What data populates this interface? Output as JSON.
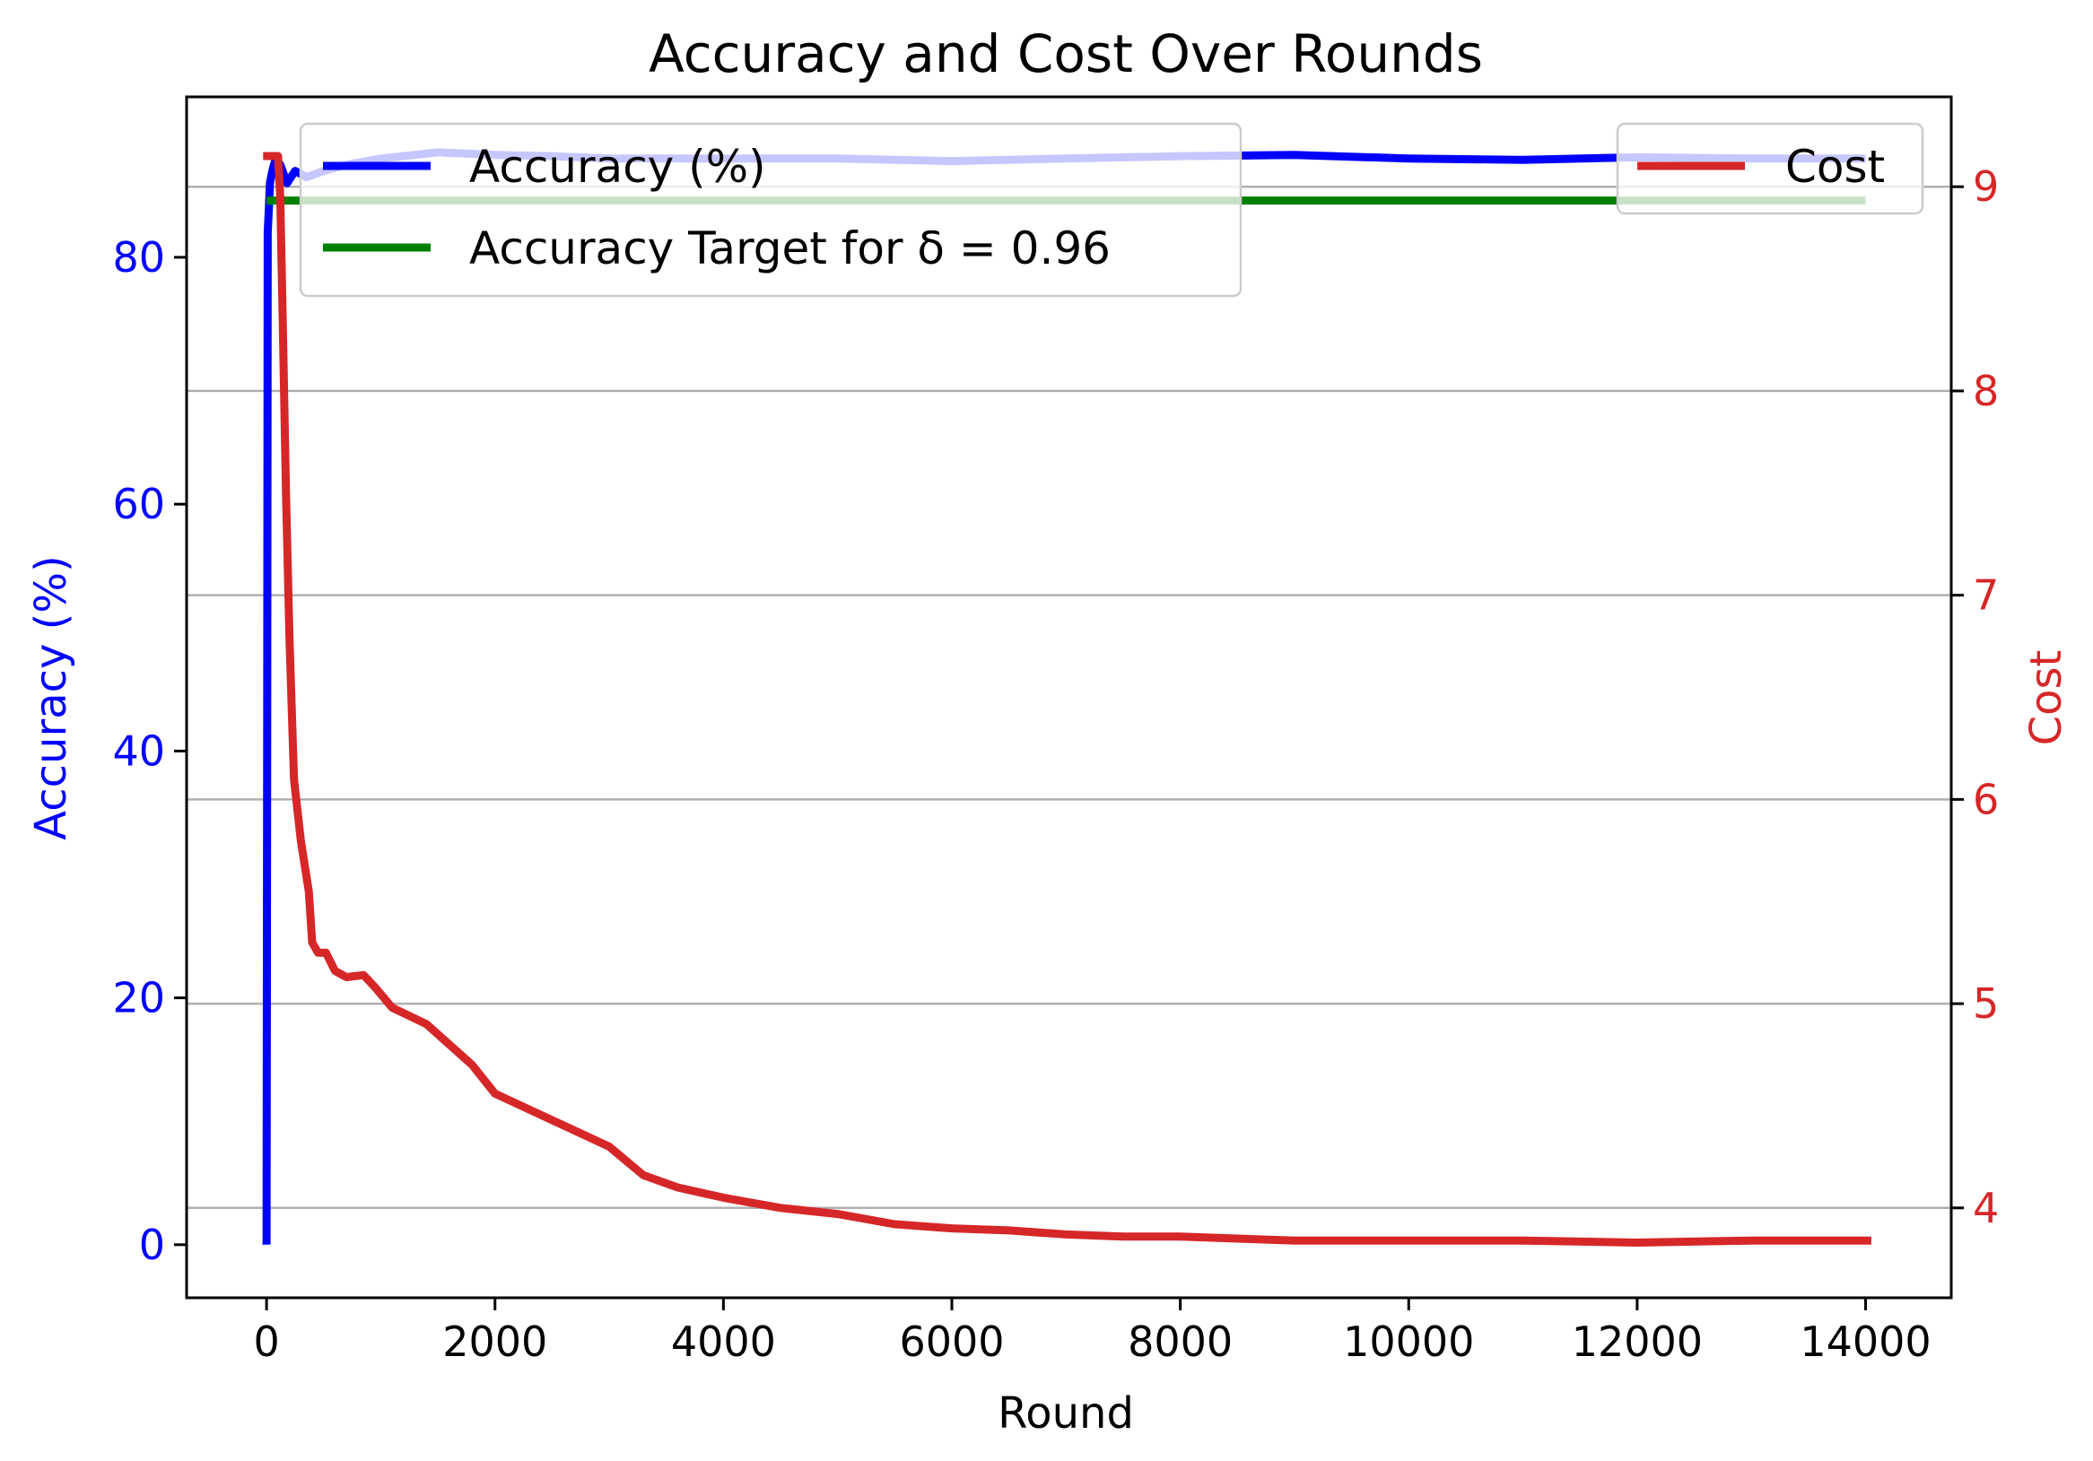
{
  "chart_data": {
    "type": "line",
    "title": "Accuracy and Cost Over Rounds",
    "xlabel": "Round",
    "ylabel_left": "Accuracy (%)",
    "ylabel_right": "Cost",
    "xlim": [
      -700,
      14750
    ],
    "ylim_left": [
      -4.3,
      93.0
    ],
    "ylim_right": [
      3.56,
      9.44
    ],
    "x_ticks": [
      0,
      2000,
      4000,
      6000,
      8000,
      10000,
      12000,
      14000
    ],
    "y_left_ticks": [
      0,
      20,
      40,
      60,
      80
    ],
    "y_right_ticks": [
      4,
      5,
      6,
      7,
      8,
      9
    ],
    "grid": "horizontal lines at right-axis ticks",
    "legend_left": {
      "placement": "top-left",
      "entries": [
        {
          "label": "Accuracy (%)",
          "color": "#0000ff"
        },
        {
          "label": "Accuracy Target for δ = 0.96",
          "color": "#008000"
        }
      ]
    },
    "legend_right": {
      "placement": "top-right",
      "entries": [
        {
          "label": "Cost",
          "color": "#d62728"
        }
      ]
    },
    "series": [
      {
        "axis": "left",
        "color": "#0000ff",
        "x": [
          0,
          5,
          10,
          20,
          30,
          50,
          80,
          120,
          180,
          250,
          350,
          500,
          700,
          1000,
          1500,
          2000,
          2500,
          3000,
          4000,
          5000,
          6000,
          7000,
          8000,
          9000,
          10000,
          11000,
          12000,
          13000,
          14000
        ],
        "values": [
          0,
          40,
          82,
          84,
          86,
          87,
          88,
          87.5,
          86,
          87,
          86.5,
          87,
          87.5,
          88,
          88.5,
          88.3,
          88.2,
          88,
          88,
          88,
          87.8,
          88,
          88.2,
          88.3,
          88,
          87.9,
          88.1,
          88,
          88
        ]
      },
      {
        "axis": "left",
        "color": "#008000",
        "x": [
          0,
          14000
        ],
        "values": [
          84.6,
          84.6
        ]
      },
      {
        "axis": "right",
        "color": "#d62728",
        "x": [
          -30,
          100,
          120,
          140,
          170,
          200,
          240,
          300,
          370,
          400,
          450,
          520,
          600,
          700,
          850,
          950,
          1100,
          1400,
          1800,
          2000,
          2500,
          3000,
          3300,
          3600,
          4000,
          4500,
          5000,
          5500,
          6000,
          6500,
          7000,
          7500,
          8000,
          8500,
          9000,
          9500,
          10000,
          11000,
          12000,
          13000,
          14050
        ],
        "values": [
          9.15,
          9.15,
          8.95,
          8.4,
          7.5,
          6.8,
          6.1,
          5.8,
          5.55,
          5.3,
          5.25,
          5.25,
          5.16,
          5.13,
          5.14,
          5.08,
          4.98,
          4.9,
          4.7,
          4.56,
          4.43,
          4.3,
          4.16,
          4.1,
          4.05,
          4.0,
          3.97,
          3.92,
          3.9,
          3.89,
          3.87,
          3.86,
          3.86,
          3.85,
          3.84,
          3.84,
          3.84,
          3.84,
          3.83,
          3.84,
          3.84
        ]
      }
    ]
  }
}
